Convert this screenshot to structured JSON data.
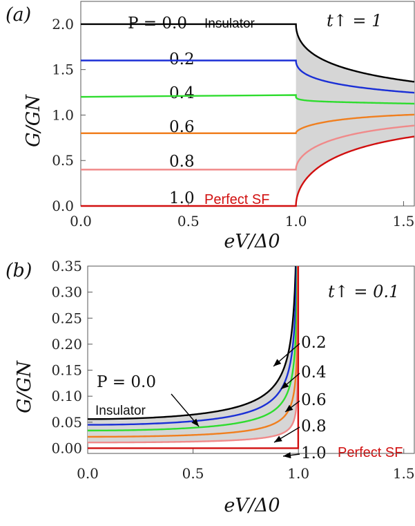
{
  "chart_data": [
    {
      "panel": "(a)",
      "type": "line",
      "xlabel": "eV/Δ0",
      "ylabel": "G/GN",
      "xlim": [
        0,
        1.55
      ],
      "ylim": [
        0,
        2.25
      ],
      "x_ticks": [
        "0.0",
        "0.5",
        "1.0",
        "1.5"
      ],
      "y_ticks": [
        "0.0",
        "0.5",
        "1.0",
        "1.5",
        "2.0"
      ],
      "annotation": "t↑ = 1",
      "insulator_text": "Insulator",
      "sf_text": "Perfect SF",
      "series": [
        {
          "name": "P = 0.0",
          "color": "#000000",
          "subgap": 2.0,
          "edge": 2.0
        },
        {
          "name": "0.2",
          "color": "#1a2fd6",
          "subgap": 1.6,
          "edge": 1.6
        },
        {
          "name": "0.4",
          "color": "#2edc2e",
          "subgap": 1.2,
          "edge": 1.22
        },
        {
          "name": "0.6",
          "color": "#f07f1f",
          "subgap": 0.8,
          "edge": 0.8
        },
        {
          "name": "0.8",
          "color": "#f08a8a",
          "subgap": 0.4,
          "edge": 0.4
        },
        {
          "name": "1.0",
          "color": "#d10f0f",
          "subgap": 0.0,
          "edge": 0.0
        }
      ]
    },
    {
      "panel": "(b)",
      "type": "line",
      "xlabel": "eV/Δ0",
      "ylabel": "G/GN",
      "xlim": [
        0,
        1.55
      ],
      "ylim": [
        -0.01,
        0.35
      ],
      "x_ticks": [
        "0.0",
        "0.5",
        "1.0",
        "1.5"
      ],
      "y_ticks": [
        "0.00",
        "0.05",
        "0.10",
        "0.15",
        "0.20",
        "0.25",
        "0.30",
        "0.35"
      ],
      "annotation": "t↑ = 0.1",
      "insulator_text": "Insulator",
      "sf_text": "Perfect SF",
      "series": [
        {
          "name": "P = 0.0",
          "color": "#000000",
          "g0": 0.056
        },
        {
          "name": "0.2",
          "color": "#1a2fd6",
          "g0": 0.045
        },
        {
          "name": "0.4",
          "color": "#2edc2e",
          "g0": 0.034
        },
        {
          "name": "0.6",
          "color": "#f07f1f",
          "g0": 0.022
        },
        {
          "name": "0.8",
          "color": "#f08a8a",
          "g0": 0.011
        },
        {
          "name": "1.0",
          "color": "#d10f0f",
          "g0": 0.0
        }
      ]
    }
  ]
}
